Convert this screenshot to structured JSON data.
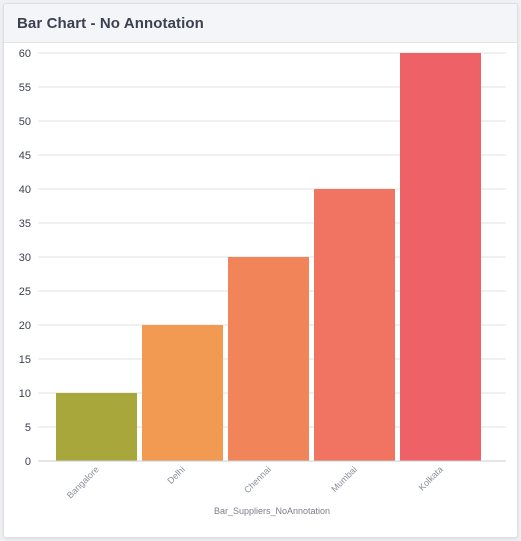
{
  "card": {
    "title": "Bar Chart - No Annotation"
  },
  "chart_data": {
    "type": "bar",
    "categories": [
      "Bangalore",
      "Delhi",
      "Chennai",
      "Mumbai",
      "Kolkata"
    ],
    "values": [
      10,
      20,
      30,
      40,
      60
    ],
    "colors": [
      "#a8a73c",
      "#f39a52",
      "#f28459",
      "#f07461",
      "#ee6167"
    ],
    "xlabel": "Bar_Suppliers_NoAnnotation",
    "ylabel": "",
    "ylim": [
      0,
      60
    ],
    "yticks": [
      0,
      5,
      10,
      15,
      20,
      25,
      30,
      35,
      40,
      45,
      50,
      55,
      60
    ],
    "grid": true,
    "legend": "none"
  }
}
